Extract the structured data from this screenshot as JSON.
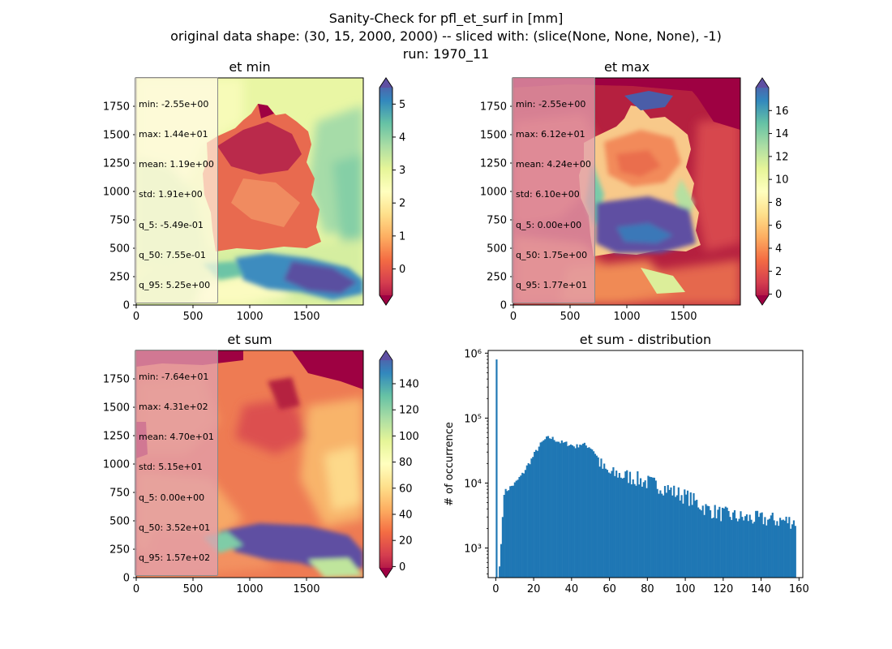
{
  "suptitle": {
    "line1": "Sanity-Check for pfl_et_surf in [mm]",
    "line2": "original data shape: (30, 15, 2000, 2000) -- sliced with: (slice(None, None, None), -1)",
    "line3": "run: 1970_11"
  },
  "panels": {
    "et_min": {
      "title": "et min",
      "stats": [
        "min: -2.55e+00",
        "max: 1.44e+01",
        "mean: 1.19e+00",
        "std: 1.91e+00",
        "q_5: -5.49e-01",
        "q_50: 7.55e-01",
        "q_95: 5.25e+00"
      ],
      "xticks": [
        "0",
        "500",
        "1000",
        "1500"
      ],
      "yticks": [
        "0",
        "250",
        "500",
        "750",
        "1000",
        "1250",
        "1500",
        "1750"
      ],
      "colorbar": {
        "vmin": -0.8,
        "vmax": 5.5,
        "ticks": [
          0,
          1,
          2,
          3,
          4,
          5
        ],
        "labels": [
          "0",
          "1",
          "2",
          "3",
          "4",
          "5"
        ]
      }
    },
    "et_max": {
      "title": "et max",
      "stats": [
        "min: -2.55e+00",
        "max: 6.12e+01",
        "mean: 4.24e+00",
        "std: 6.10e+00",
        "q_5: 0.00e+00",
        "q_50: 1.75e+00",
        "q_95: 1.77e+01"
      ],
      "xticks": [
        "0",
        "500",
        "1000",
        "1500"
      ],
      "yticks": [
        "0",
        "250",
        "500",
        "750",
        "1000",
        "1250",
        "1500",
        "1750"
      ],
      "colorbar": {
        "vmin": -0.1,
        "vmax": 18.0,
        "ticks": [
          0,
          2,
          4,
          6,
          8,
          10,
          12,
          14,
          16
        ],
        "labels": [
          "0",
          "2",
          "4",
          "6",
          "8",
          "10",
          "12",
          "14",
          "16"
        ]
      }
    },
    "et_sum": {
      "title": "et sum",
      "stats": [
        "min: -7.64e+01",
        "max: 4.31e+02",
        "mean: 4.70e+01",
        "std: 5.15e+01",
        "q_5: 0.00e+00",
        "q_50: 3.52e+01",
        "q_95: 1.57e+02"
      ],
      "xticks": [
        "0",
        "500",
        "1000",
        "1500"
      ],
      "yticks": [
        "0",
        "250",
        "500",
        "750",
        "1000",
        "1250",
        "1500",
        "1750"
      ],
      "colorbar": {
        "vmin": -1.0,
        "vmax": 158.0,
        "ticks": [
          0,
          20,
          40,
          60,
          80,
          100,
          120,
          140
        ],
        "labels": [
          "0",
          "20",
          "40",
          "60",
          "80",
          "100",
          "120",
          "140"
        ]
      }
    },
    "hist": {
      "title": "et sum - distribution",
      "ylabel": "# of occurrence"
    }
  },
  "colors": {
    "colormap": "Spectral",
    "hist_bar": "#1f77b4",
    "stats_box_light": "#fffbe6",
    "stats_box_pink": "#dfa0ab"
  },
  "chart_data": [
    {
      "type": "heatmap",
      "title": "et min",
      "xlim": [
        0,
        2000
      ],
      "ylim": [
        0,
        2000
      ],
      "colormap": "Spectral",
      "colorbar_range": [
        -0.8,
        5.5
      ]
    },
    {
      "type": "heatmap",
      "title": "et max",
      "xlim": [
        0,
        2000
      ],
      "ylim": [
        0,
        2000
      ],
      "colormap": "Spectral",
      "colorbar_range": [
        -0.1,
        18.0
      ]
    },
    {
      "type": "heatmap",
      "title": "et sum",
      "xlim": [
        0,
        2000
      ],
      "ylim": [
        0,
        2000
      ],
      "colormap": "Spectral",
      "colorbar_range": [
        -1.0,
        158.0
      ]
    },
    {
      "type": "bar",
      "title": "et sum - distribution",
      "ylabel": "# of occurrence",
      "yscale": "log",
      "xlim": [
        -4,
        162
      ],
      "ylim": [
        350,
        1100000
      ],
      "xticks": [
        0,
        20,
        40,
        60,
        80,
        100,
        120,
        140,
        160
      ],
      "yticks": [
        1000,
        10000,
        100000,
        1000000
      ],
      "ytick_labels": [
        "10³",
        "10⁴",
        "10⁵",
        "10⁶"
      ],
      "spikes": [
        [
          0.0,
          800000
        ],
        [
          1.6,
          520
        ],
        [
          2.4,
          1150
        ],
        [
          3.2,
          3000
        ]
      ],
      "bin_width": 0.8,
      "profile": [
        [
          4,
          7200
        ],
        [
          6,
          8000
        ],
        [
          8,
          9000
        ],
        [
          10,
          10000
        ],
        [
          12,
          12000
        ],
        [
          14,
          14000
        ],
        [
          16,
          18000
        ],
        [
          18,
          22000
        ],
        [
          20,
          28000
        ],
        [
          22,
          35000
        ],
        [
          24,
          42000
        ],
        [
          26,
          48000
        ],
        [
          28,
          50000
        ],
        [
          30,
          48000
        ],
        [
          32,
          45000
        ],
        [
          34,
          42000
        ],
        [
          36,
          41000
        ],
        [
          38,
          40000
        ],
        [
          40,
          38000
        ],
        [
          42,
          36000
        ],
        [
          44,
          40000
        ],
        [
          46,
          39000
        ],
        [
          48,
          37000
        ],
        [
          50,
          35000
        ],
        [
          52,
          29000
        ],
        [
          54,
          22000
        ],
        [
          56,
          17000
        ],
        [
          58,
          15000
        ],
        [
          60,
          14000
        ],
        [
          62,
          13500
        ],
        [
          64,
          14000
        ],
        [
          66,
          13000
        ],
        [
          70,
          12500
        ],
        [
          74,
          11500
        ],
        [
          78,
          10500
        ],
        [
          82,
          9800
        ],
        [
          86,
          9000
        ],
        [
          90,
          8200
        ],
        [
          94,
          7200
        ],
        [
          98,
          6500
        ],
        [
          102,
          5800
        ],
        [
          106,
          4900
        ],
        [
          110,
          4100
        ],
        [
          114,
          3700
        ],
        [
          118,
          3400
        ],
        [
          122,
          3200
        ],
        [
          126,
          3050
        ],
        [
          130,
          2900
        ],
        [
          134,
          2850
        ],
        [
          138,
          2800
        ],
        [
          142,
          2750
        ],
        [
          146,
          2700
        ],
        [
          150,
          2650
        ],
        [
          154,
          2600
        ],
        [
          158,
          2600
        ]
      ],
      "noise": 0.18,
      "x_end": 158
    }
  ]
}
